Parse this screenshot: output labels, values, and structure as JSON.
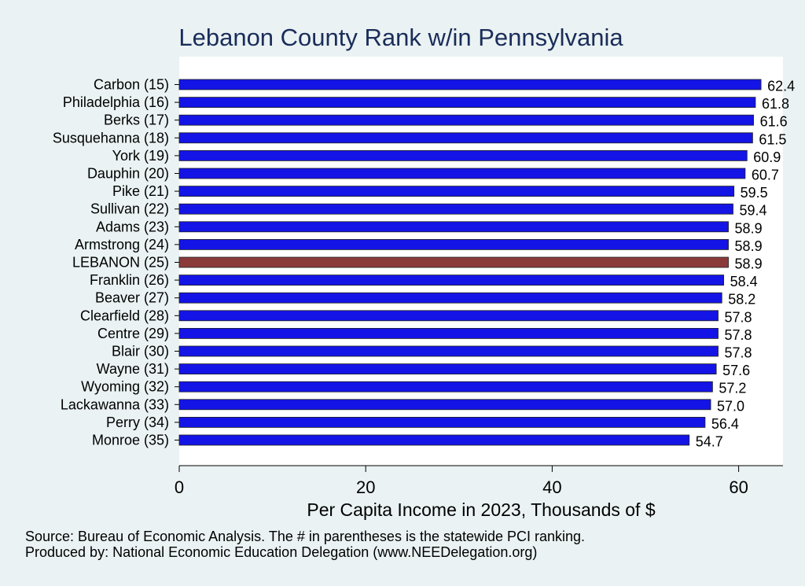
{
  "chart_data": {
    "type": "bar",
    "orientation": "horizontal",
    "title": "Lebanon County Rank w/in Pennsylvania",
    "xlabel": "Per Capita Income in 2023, Thousands of $",
    "ylabel": "",
    "xlim": [
      0,
      64.5
    ],
    "xticks": [
      0,
      20,
      40,
      60
    ],
    "categories": [
      "Carbon (15)",
      "Philadelphia (16)",
      "Berks (17)",
      "Susquehanna (18)",
      "York (19)",
      "Dauphin (20)",
      "Pike (21)",
      "Sullivan (22)",
      "Adams (23)",
      "Armstrong (24)",
      "LEBANON (25)",
      "Franklin (26)",
      "Beaver (27)",
      "Clearfield (28)",
      "Centre (29)",
      "Blair (30)",
      "Wayne (31)",
      "Wyoming (32)",
      "Lackawanna (33)",
      "Perry (34)",
      "Monroe (35)"
    ],
    "values": [
      62.4,
      61.8,
      61.6,
      61.5,
      60.9,
      60.7,
      59.5,
      59.4,
      58.9,
      58.9,
      58.9,
      58.4,
      58.2,
      57.8,
      57.8,
      57.8,
      57.6,
      57.2,
      57.0,
      56.4,
      54.7
    ],
    "value_labels": [
      "62.4",
      "61.8",
      "61.6",
      "61.5",
      "60.9",
      "60.7",
      "59.5",
      "59.4",
      "58.9",
      "58.9",
      "58.9",
      "58.4",
      "58.2",
      "57.8",
      "57.8",
      "57.8",
      "57.6",
      "57.2",
      "57.0",
      "56.4",
      "54.7"
    ],
    "highlight_category": "LEBANON (25)",
    "colors": {
      "bar": "#1414e6",
      "highlight": "#8b3a3a",
      "plot_bg": "#ffffff",
      "page_bg": "#eaf2f3",
      "title": "#1a2d5a"
    },
    "grid": false,
    "legend": "none"
  },
  "footer": {
    "source": "Source: Bureau of Economic Analysis. The # in parentheses is the statewide PCI ranking.",
    "produced": "Produced by: National Economic Education Delegation (www.NEEDelegation.org)"
  }
}
